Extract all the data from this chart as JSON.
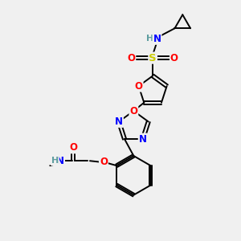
{
  "bg_color": "#f0f0f0",
  "bond_color": "#000000",
  "bond_width": 1.4,
  "atom_colors": {
    "O": "#ff0000",
    "N": "#0000ff",
    "S": "#cccc00",
    "H": "#5f9ea0",
    "C": "#000000"
  },
  "font_size": 8.5
}
